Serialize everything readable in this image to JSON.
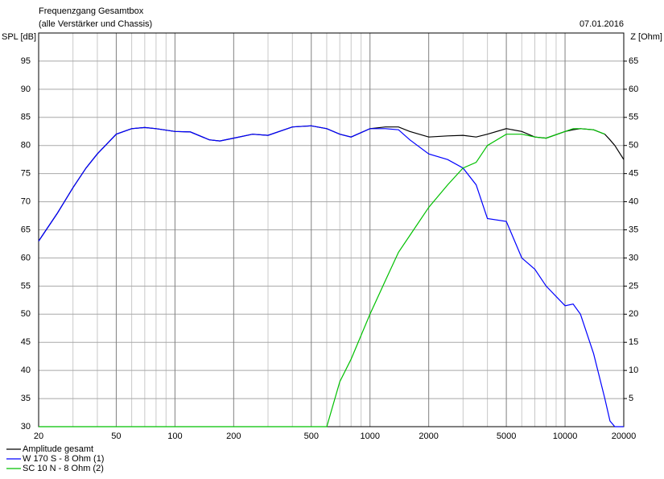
{
  "chart_data": {
    "type": "line",
    "title": "Frequenzgang Gesamtbox",
    "subtitle": "(alle Verstärker und Chassis)",
    "date": "07.01.2016",
    "ylabel": "SPL [dB]",
    "y2label": "Z [Ohm]",
    "xscale": "log",
    "grid": true,
    "legend": "bottom-left",
    "x": [
      20,
      25,
      30,
      35,
      40,
      50,
      60,
      70,
      80,
      100,
      120,
      150,
      170,
      200,
      250,
      300,
      400,
      500,
      600,
      700,
      800,
      1000,
      1200,
      1400,
      1600,
      2000,
      2500,
      3000,
      3500,
      4000,
      5000,
      6000,
      7000,
      8000,
      10000,
      11000,
      12000,
      14000,
      16000,
      17000,
      18000,
      20000
    ],
    "xlim": [
      20,
      20000
    ],
    "xticks": [
      20,
      50,
      100,
      200,
      500,
      1000,
      2000,
      5000,
      10000,
      20000
    ],
    "xminorticks": [
      30,
      40,
      60,
      70,
      80,
      90,
      300,
      400,
      600,
      700,
      800,
      900,
      3000,
      4000,
      6000,
      7000,
      8000,
      9000
    ],
    "ylim": [
      30,
      100
    ],
    "yticks": [
      30,
      35,
      40,
      45,
      50,
      55,
      60,
      65,
      70,
      75,
      80,
      85,
      90,
      95
    ],
    "y2lim": [
      0,
      70
    ],
    "y2ticks": [
      5,
      10,
      15,
      20,
      25,
      30,
      35,
      40,
      45,
      50,
      55,
      60,
      65
    ],
    "series": [
      {
        "name": "Amplitude gesamt",
        "color": "#000000",
        "values": [
          63,
          68,
          72.5,
          76,
          78.5,
          82,
          83,
          83.2,
          83,
          82.5,
          82.4,
          81,
          80.8,
          81.3,
          82,
          81.8,
          83.3,
          83.5,
          83,
          82,
          81.5,
          83,
          83.3,
          83.3,
          82.5,
          81.5,
          81.7,
          81.8,
          81.5,
          82,
          83,
          82.5,
          81.5,
          81.3,
          82.5,
          82.8,
          83,
          82.8,
          82,
          81,
          80,
          77.5
        ]
      },
      {
        "name": "W 170 S - 8 Ohm (1)",
        "color": "#0000ff",
        "values": [
          63,
          68,
          72.5,
          76,
          78.5,
          82,
          83,
          83.2,
          83,
          82.5,
          82.4,
          81,
          80.8,
          81.3,
          82,
          81.8,
          83.3,
          83.5,
          83,
          82,
          81.5,
          83,
          83,
          82.8,
          81,
          78.5,
          77.5,
          76,
          73,
          67,
          66.5,
          60,
          58,
          55,
          51.5,
          51.8,
          50,
          43,
          35,
          31,
          30,
          30
        ]
      },
      {
        "name": "SC 10 N - 8 Ohm (2)",
        "color": "#00c000",
        "values": [
          30,
          30,
          30,
          30,
          30,
          30,
          30,
          30,
          30,
          30,
          30,
          30,
          30,
          30,
          30,
          30,
          30,
          30,
          30,
          38,
          42,
          50,
          56,
          61,
          64,
          69,
          73,
          76,
          77,
          80,
          82,
          82,
          81.5,
          81.3,
          82.5,
          83,
          83,
          82.8,
          82,
          null,
          null,
          null
        ]
      }
    ]
  }
}
